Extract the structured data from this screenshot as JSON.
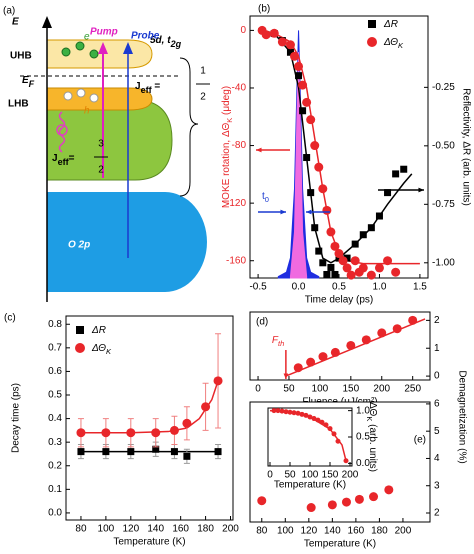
{
  "diagram": {
    "label": "(a)",
    "axis": "E",
    "orbital": {
      "text": "5d, t",
      "sub": "2g"
    },
    "uhb": "UHB",
    "lhb": "LHB",
    "fermi": {
      "text": "E",
      "sub": "F"
    },
    "pump": "Pump",
    "probe": "Probe",
    "electron": "e",
    "hole": "h",
    "jeff_half": {
      "symbol": "J",
      "sub": "eff",
      "eq": " = ",
      "num": "1",
      "den": "2"
    },
    "jeff_three_half": {
      "symbol": "J",
      "sub": "eff",
      "eq": "=",
      "num": "3",
      "den": "2"
    },
    "o2p": "O 2p"
  },
  "chart_data": [
    {
      "type": "line",
      "label": "(b)",
      "xlabel": "Time delay (ps)",
      "ylabel": {
        "text": "MOKE rotation, ΔΘ",
        "sub": "K",
        "tail": " (μdeg)"
      },
      "y2label": "Reflectivity, ΔR (arb. units)",
      "axis_colors": {
        "y": "#e8262a"
      },
      "legend": "upper right",
      "annotations": [
        {
          "text": "t",
          "sub": "0"
        }
      ],
      "xlim": [
        -0.6,
        1.6
      ],
      "xticks": [
        -0.5,
        {
          "value": 0,
          "label": "0.0"
        },
        0.5,
        {
          "value": 1,
          "label": "1.0"
        },
        1.5
      ],
      "ylim": [
        -172,
        10
      ],
      "yticks": [
        0,
        -40,
        -80,
        -120,
        -160
      ],
      "y2lim": [
        -1.065,
        0.055
      ],
      "y2ticks": [
        -0.25,
        {
          "value": -0.5,
          "label": "-0.50"
        },
        -0.75,
        {
          "value": -1,
          "label": "-1.00"
        }
      ],
      "series": [
        {
          "mode": "area",
          "color": "#1f2de0",
          "x": [
            -0.25,
            -0.15,
            -0.1,
            -0.05,
            -0.02,
            0,
            0.02,
            0.05,
            0.1,
            0.15,
            0.25
          ],
          "values": [
            -171,
            -168,
            -158,
            -110,
            -40,
            0,
            -40,
            -110,
            -158,
            -168,
            -171
          ]
        },
        {
          "mode": "area",
          "color": "#f06ae0",
          "x": [
            -0.1,
            -0.05,
            -0.02,
            0,
            0.02,
            0.05,
            0.1
          ],
          "values": [
            -171,
            -140,
            -60,
            -15,
            -60,
            -140,
            -171
          ]
        },
        {
          "mode": "line",
          "axis": "y2",
          "color": "#000000",
          "x": [
            -0.5,
            -0.3,
            -0.1,
            0.0,
            0.1,
            0.2,
            0.3,
            0.4,
            0.5,
            0.7,
            0.9,
            1.1,
            1.3,
            1.4
          ],
          "values": [
            0,
            -0.02,
            -0.1,
            -0.25,
            -0.55,
            -0.85,
            -0.98,
            -1.0,
            -0.98,
            -0.92,
            -0.85,
            -0.75,
            -0.66,
            -0.62
          ]
        },
        {
          "mode": "line",
          "color": "#e8262a",
          "x": [
            -0.5,
            -0.3,
            -0.1,
            0.0,
            0.1,
            0.2,
            0.3,
            0.4,
            0.5,
            0.6,
            0.8,
            1.0,
            1.5
          ],
          "values": [
            0,
            -2,
            -8,
            -18,
            -40,
            -75,
            -110,
            -140,
            -155,
            -160,
            -162,
            -162,
            -162
          ]
        },
        {
          "name": "ΔR",
          "mode": "markers",
          "marker": "square",
          "axis": "y2",
          "color": "#000000",
          "x": [
            -0.3,
            -0.2,
            -0.1,
            0.0,
            0.05,
            0.1,
            0.15,
            0.2,
            0.25,
            0.3,
            0.35,
            0.4,
            0.45,
            0.5,
            0.6,
            0.7,
            0.8,
            0.9,
            1.0,
            1.1,
            1.2,
            1.3
          ],
          "values": [
            -0.02,
            -0.05,
            -0.1,
            -0.2,
            -0.35,
            -0.55,
            -0.7,
            -0.85,
            -0.95,
            -1.0,
            -1.05,
            -1.02,
            -1.05,
            -0.98,
            -0.98,
            -0.92,
            -0.88,
            -0.85,
            -0.8,
            -0.7,
            -0.62,
            -0.6
          ]
        },
        {
          "name": "ΔΘ",
          "name_sub": "K",
          "mode": "markers",
          "marker": "circle",
          "color": "#e8262a",
          "x": [
            -0.45,
            -0.4,
            -0.3,
            -0.2,
            -0.1,
            -0.05,
            0.0,
            0.05,
            0.1,
            0.15,
            0.2,
            0.25,
            0.3,
            0.35,
            0.4,
            0.45,
            0.5,
            0.55,
            0.6,
            0.65,
            0.7,
            0.75,
            0.8,
            0.9,
            1.0,
            1.1,
            1.2
          ],
          "values": [
            0,
            -3,
            -2,
            -8,
            -10,
            -18,
            -25,
            -38,
            -50,
            -62,
            -80,
            -95,
            -110,
            -125,
            -140,
            -150,
            -155,
            -160,
            -165,
            -170,
            -160,
            -168,
            -165,
            -170,
            -165,
            -160,
            -168
          ]
        }
      ]
    },
    {
      "type": "line",
      "label": "(c)",
      "xlabel": "Temperature (K)",
      "ylabel": "Decay time (ps)",
      "legend": "upper left",
      "xlim": [
        68,
        202
      ],
      "xticks": [
        80,
        100,
        120,
        140,
        160,
        180,
        200
      ],
      "ylim": [
        -0.03,
        0.835
      ],
      "yticks": [
        {
          "value": 0,
          "label": "0.0"
        },
        0.1,
        0.2,
        0.3,
        0.4,
        0.5,
        0.6,
        0.7,
        0.8
      ],
      "series": [
        {
          "mode": "line",
          "color": "#000000",
          "x": [
            80,
            190
          ],
          "values": [
            0.26,
            0.26
          ]
        },
        {
          "mode": "line",
          "color": "#e8262a",
          "x": [
            80,
            120,
            150,
            165,
            175,
            185,
            190
          ],
          "values": [
            0.34,
            0.34,
            0.345,
            0.36,
            0.4,
            0.48,
            0.56
          ]
        },
        {
          "name": "ΔR",
          "mode": "markers",
          "marker": "square",
          "color": "#000000",
          "error_color": "#999999",
          "x": [
            80,
            100,
            120,
            140,
            155,
            165,
            190
          ],
          "values": [
            0.26,
            0.26,
            0.26,
            0.27,
            0.26,
            0.24,
            0.26
          ],
          "errors": [
            0.03,
            0.03,
            0.03,
            0.03,
            0.03,
            0.03,
            0.03
          ]
        },
        {
          "name": "ΔΘ",
          "name_sub": "K",
          "mode": "markers",
          "marker": "circle",
          "color": "#e8262a",
          "error_color": "#f08080",
          "x": [
            80,
            100,
            120,
            140,
            155,
            165,
            180,
            190
          ],
          "values": [
            0.34,
            0.34,
            0.34,
            0.34,
            0.35,
            0.38,
            0.45,
            0.56
          ],
          "errors": [
            0.06,
            0.06,
            0.06,
            0.06,
            0.06,
            0.07,
            0.1,
            0.2
          ]
        }
      ]
    },
    {
      "type": "line",
      "label": "(d)",
      "xlabel": "Fluence (μJ/cm²)",
      "annotations": [
        {
          "text": "F",
          "sub": "th"
        }
      ],
      "xlim": [
        -13,
        278
      ],
      "xticks": [
        0,
        50,
        100,
        150,
        200,
        250
      ],
      "ylim": [
        -0.14,
        2.3
      ],
      "yticks": [
        0,
        1,
        2
      ],
      "series": [
        {
          "mode": "line",
          "color": "#e8262a",
          "x": [
            45,
            270
          ],
          "values": [
            0,
            2.05
          ]
        },
        {
          "mode": "markers",
          "marker": "circle",
          "color": "#e8262a",
          "x": [
            65,
            85,
            105,
            125,
            150,
            175,
            200,
            225,
            250
          ],
          "values": [
            0.3,
            0.5,
            0.7,
            0.85,
            1.1,
            1.3,
            1.55,
            1.7,
            2.0
          ]
        }
      ]
    },
    {
      "type": "scatter",
      "label": "(e)",
      "xlabel": "Temperature (K)",
      "ylabel": "Demagnetization (%)",
      "xlim": [
        70,
        223
      ],
      "xticks": [
        80,
        100,
        120,
        140,
        160,
        180,
        200
      ],
      "ylim": [
        1.67,
        6.07
      ],
      "yticks": [
        2,
        3,
        4,
        5,
        6
      ],
      "series": [
        {
          "mode": "markers",
          "marker": "circle",
          "color": "#e8262a",
          "x": [
            80,
            122,
            140,
            152,
            163,
            175,
            188
          ],
          "values": [
            2.45,
            2.2,
            2.3,
            2.4,
            2.5,
            2.6,
            2.85
          ]
        }
      ]
    },
    {
      "type": "line",
      "xlabel": "Temperature (K)",
      "ylabel": {
        "text": "ΔΘ",
        "sub": "K",
        "tail": " (arb. units)"
      },
      "xlim": [
        -5,
        205
      ],
      "xticks": [
        0,
        50,
        100,
        150,
        200
      ],
      "ylim": [
        -0.05,
        1.05
      ],
      "yticks": [
        {
          "value": 0,
          "label": "0.0"
        },
        0.5,
        {
          "value": 1,
          "label": "1.0"
        }
      ],
      "series": [
        {
          "mode": "line",
          "color": "#e8262a",
          "x": [
            0,
            50,
            100,
            150,
            180,
            190
          ],
          "values": [
            1,
            0.97,
            0.88,
            0.65,
            0.35,
            0.05
          ]
        },
        {
          "mode": "markers",
          "marker": "circle",
          "size": 2.5,
          "color": "#e8262a",
          "x": [
            10,
            20,
            30,
            40,
            50,
            60,
            70,
            80,
            90,
            100,
            110,
            120,
            130,
            140,
            150,
            160,
            170,
            190
          ],
          "values": [
            1,
            1,
            0.99,
            0.98,
            0.97,
            0.96,
            0.95,
            0.93,
            0.91,
            0.88,
            0.85,
            0.82,
            0.78,
            0.73,
            0.66,
            0.56,
            0.42,
            0.05
          ]
        }
      ]
    }
  ]
}
